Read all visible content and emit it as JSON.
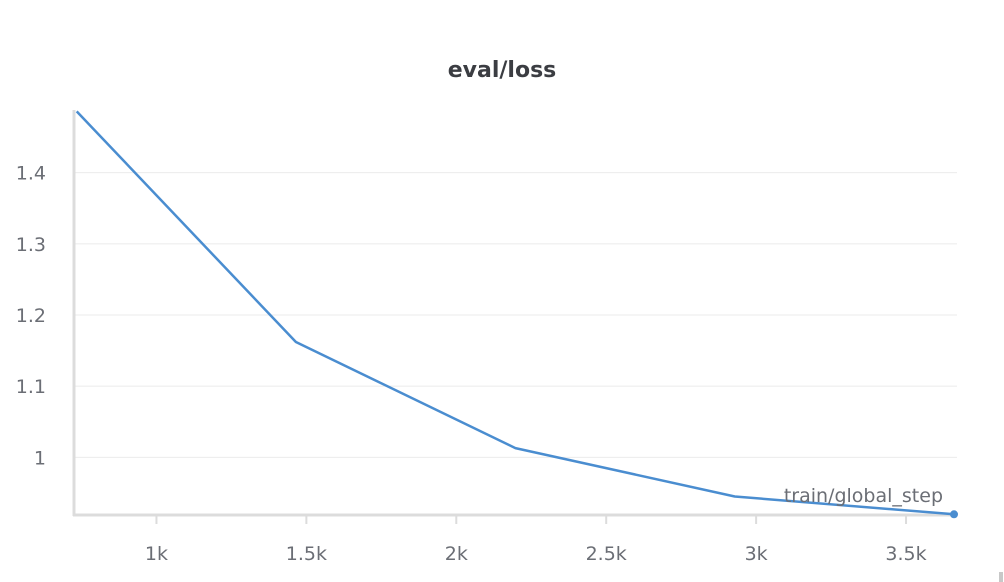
{
  "chart_data": {
    "type": "line",
    "title": "eval/loss",
    "xlabel": "train/global_step",
    "ylabel": "",
    "xlim": [
      725,
      3670
    ],
    "ylim": [
      0.919,
      1.488
    ],
    "x_ticks": [
      1000,
      1500,
      2000,
      2500,
      3000,
      3500
    ],
    "x_tick_labels": [
      "1k",
      "1.5k",
      "2k",
      "2.5k",
      "3k",
      "3.5k"
    ],
    "y_ticks": [
      1.0,
      1.1,
      1.2,
      1.3,
      1.4
    ],
    "y_tick_labels": [
      "1",
      "1.1",
      "1.2",
      "1.3",
      "1.4"
    ],
    "grid": true,
    "series": [
      {
        "color": "#4a8dd0",
        "x": [
          734,
          1465,
          2197,
          2929,
          3660
        ],
        "y": [
          1.486,
          1.162,
          1.013,
          0.945,
          0.92
        ]
      }
    ]
  }
}
